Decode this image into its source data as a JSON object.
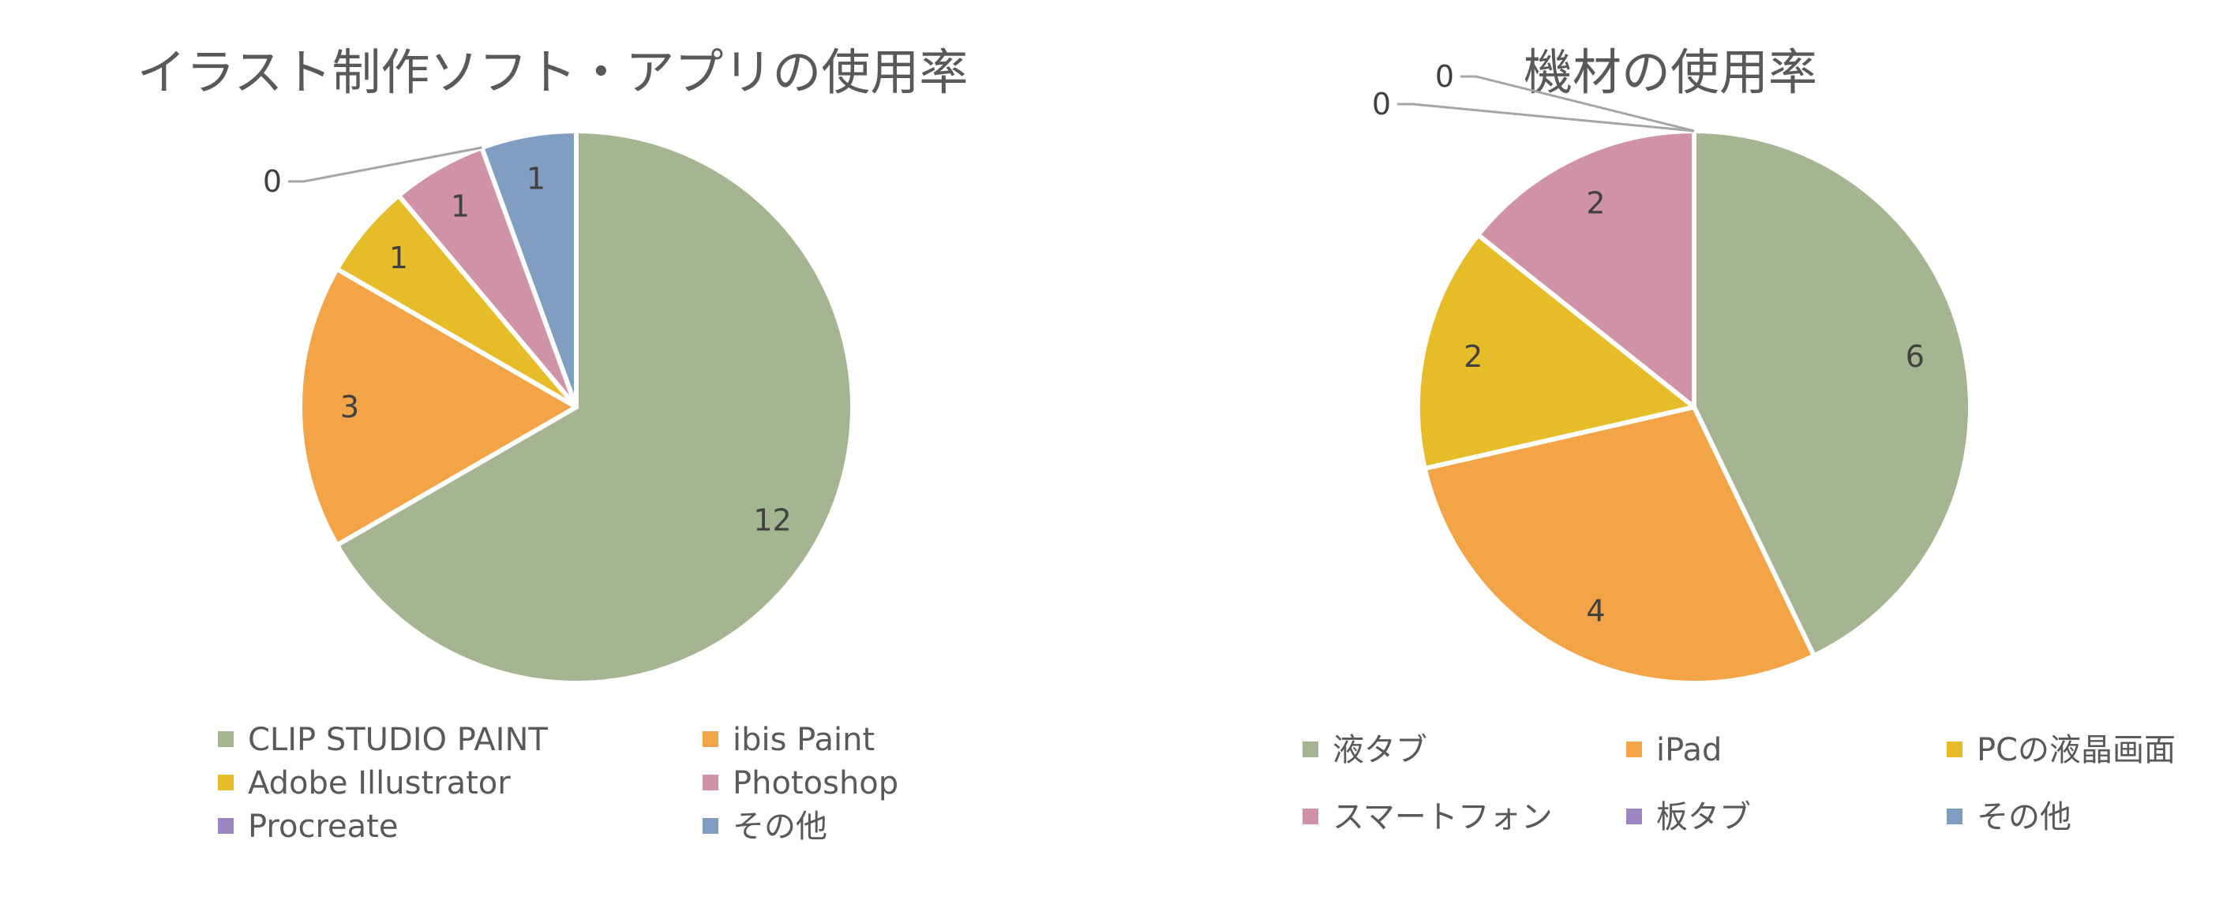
{
  "chart_data": [
    {
      "type": "pie",
      "title": "イラスト制作ソフト・アプリの使用率",
      "categories": [
        "CLIP STUDIO PAINT",
        "ibis Paint",
        "Adobe Illustrator",
        "Photoshop",
        "Procreate",
        "その他"
      ],
      "values": [
        12,
        3,
        1,
        1,
        0,
        1
      ],
      "colors": [
        "#A5B592",
        "#F3A447",
        "#E7BC29",
        "#D092A7",
        "#9C85C0",
        "#809EC2"
      ],
      "start_angle": "12 o'clock",
      "direction": "clockwise",
      "legend_position": "bottom",
      "data_labels": true
    },
    {
      "type": "pie",
      "title": "機材の使用率",
      "categories": [
        "液タブ",
        "iPad",
        "PCの液晶画面",
        "スマートフォン",
        "板タブ",
        "その他"
      ],
      "values": [
        6,
        4,
        2,
        2,
        0,
        0
      ],
      "colors": [
        "#A5B592",
        "#F3A447",
        "#E7BC29",
        "#D092A7",
        "#9C85C0",
        "#809EC2"
      ],
      "start_angle": "12 o'clock",
      "direction": "clockwise",
      "legend_position": "bottom",
      "data_labels": true
    }
  ]
}
